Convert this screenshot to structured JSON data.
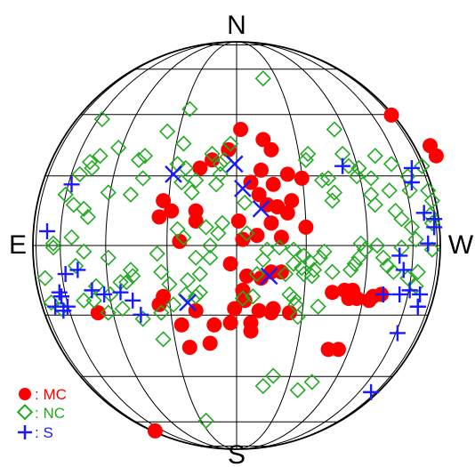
{
  "chart_data": {
    "type": "scatter",
    "projection": "stereonet",
    "title": "",
    "directions": {
      "north": "N",
      "south": "S",
      "east": "E",
      "west": "W"
    },
    "grid": true,
    "legend_position": "bottom-left",
    "colors": {
      "MC": "#ff0000",
      "NC": "#22aa22",
      "S": "#1a1aff"
    },
    "series": [
      {
        "name": "MC",
        "legend_label": ": MC",
        "marker": "filled-circle",
        "points": [
          [
            0.13,
            0.52
          ],
          [
            0.17,
            0.47
          ],
          [
            0.02,
            0.57
          ],
          [
            -0.12,
            0.42
          ],
          [
            -0.04,
            0.47
          ],
          [
            0.12,
            0.37
          ],
          [
            -0.18,
            0.38
          ],
          [
            0.25,
            0.35
          ],
          [
            0.32,
            0.33
          ],
          [
            0.18,
            0.3
          ],
          [
            -0.36,
            0.22
          ],
          [
            -0.38,
            0.14
          ],
          [
            -0.32,
            0.17
          ],
          [
            -0.2,
            0.17
          ],
          [
            -0.2,
            0.12
          ],
          [
            0.07,
            0.31
          ],
          [
            0.11,
            0.25
          ],
          [
            0.15,
            0.2
          ],
          [
            0.2,
            0.19
          ],
          [
            0.27,
            0.22
          ],
          [
            0.25,
            0.16
          ],
          [
            0.17,
            0.11
          ],
          [
            0.01,
            0.12
          ],
          [
            0.1,
            0.05
          ],
          [
            0.03,
            0.03
          ],
          [
            0.22,
            0.04
          ],
          [
            0.34,
            0.09
          ],
          [
            0.76,
            0.64
          ],
          [
            0.95,
            0.49
          ],
          [
            0.98,
            0.44
          ],
          [
            -0.28,
            0.02
          ],
          [
            -0.03,
            -0.09
          ],
          [
            0.05,
            -0.15
          ],
          [
            0.12,
            -0.16
          ],
          [
            0.17,
            -0.13
          ],
          [
            0.22,
            -0.13
          ],
          [
            0.03,
            -0.22
          ],
          [
            0.04,
            -0.27
          ],
          [
            0.11,
            -0.32
          ],
          [
            0.18,
            -0.31
          ],
          [
            0.07,
            -0.38
          ],
          [
            -0.01,
            -0.31
          ],
          [
            -0.36,
            -0.25
          ],
          [
            -0.2,
            -0.32
          ],
          [
            -0.27,
            -0.39
          ],
          [
            -0.03,
            -0.38
          ],
          [
            -0.11,
            -0.39
          ],
          [
            -0.13,
            -0.48
          ],
          [
            -0.23,
            -0.5
          ],
          [
            0.07,
            -0.42
          ],
          [
            0.17,
            -0.33
          ],
          [
            0.26,
            -0.33
          ],
          [
            0.47,
            -0.23
          ],
          [
            0.53,
            -0.22
          ],
          [
            0.57,
            -0.22
          ],
          [
            0.55,
            -0.26
          ],
          [
            0.59,
            -0.26
          ],
          [
            0.65,
            -0.27
          ],
          [
            0.67,
            -0.25
          ],
          [
            0.71,
            -0.24
          ],
          [
            0.5,
            -0.51
          ],
          [
            0.45,
            -0.51
          ],
          [
            -0.38,
            -0.29
          ],
          [
            -0.68,
            -0.33
          ],
          [
            -0.4,
            -0.91
          ]
        ]
      },
      {
        "name": "NC",
        "legend_label": ": NC",
        "marker": "open-diamond",
        "points": [
          [
            0.13,
            0.82
          ],
          [
            0.48,
            0.57
          ],
          [
            0.35,
            0.45
          ],
          [
            0.34,
            0.42
          ],
          [
            0.42,
            0.32
          ],
          [
            0.45,
            0.33
          ],
          [
            0.52,
            0.45
          ],
          [
            0.55,
            0.39
          ],
          [
            0.59,
            0.34
          ],
          [
            0.6,
            0.38
          ],
          [
            0.48,
            0.26
          ],
          [
            0.47,
            0.22
          ],
          [
            0.68,
            0.44
          ],
          [
            0.76,
            0.4
          ],
          [
            0.66,
            0.33
          ],
          [
            0.66,
            0.25
          ],
          [
            0.68,
            0.2
          ],
          [
            0.75,
            0.27
          ],
          [
            0.78,
            0.17
          ],
          [
            0.84,
            0.34
          ],
          [
            0.91,
            0.39
          ],
          [
            0.85,
            0.27
          ],
          [
            0.81,
            0.13
          ],
          [
            0.86,
            0.09
          ],
          [
            0.88,
            0.03
          ],
          [
            0.94,
            0.27
          ],
          [
            0.96,
            0.22
          ],
          [
            0.95,
            0.15
          ],
          [
            0.96,
            0.11
          ],
          [
            -0.23,
            0.67
          ],
          [
            -0.34,
            0.56
          ],
          [
            -0.48,
            0.42
          ],
          [
            -0.66,
            0.62
          ],
          [
            -0.58,
            0.48
          ],
          [
            -0.72,
            0.41
          ],
          [
            -0.71,
            0.38
          ],
          [
            -0.67,
            0.44
          ],
          [
            -0.77,
            0.35
          ],
          [
            -0.84,
            0.25
          ],
          [
            -0.8,
            0.2
          ],
          [
            -0.75,
            0.18
          ],
          [
            -0.73,
            0.14
          ],
          [
            -0.63,
            0.26
          ],
          [
            -0.52,
            0.25
          ],
          [
            -0.46,
            0.33
          ],
          [
            -0.45,
            0.44
          ],
          [
            -0.29,
            0.4
          ],
          [
            -0.25,
            0.38
          ],
          [
            -0.12,
            0.45
          ],
          [
            -0.08,
            0.4
          ],
          [
            -0.06,
            0.42
          ],
          [
            -0.03,
            0.5
          ],
          [
            -0.1,
            0.3
          ],
          [
            -0.08,
            0.35
          ],
          [
            -0.27,
            0.31
          ],
          [
            -0.22,
            0.26
          ],
          [
            -0.26,
            0.5
          ],
          [
            -0.2,
            0.32
          ],
          [
            -0.09,
            0.06
          ],
          [
            -0.07,
            0.11
          ],
          [
            0.04,
            0.21
          ],
          [
            -0.15,
            0.09
          ],
          [
            -0.29,
            0.08
          ],
          [
            -0.26,
            0.04
          ],
          [
            -0.13,
            0.0
          ],
          [
            -0.13,
            -0.06
          ],
          [
            -0.2,
            -0.06
          ],
          [
            -0.18,
            -0.14
          ],
          [
            -0.24,
            -0.17
          ],
          [
            -0.33,
            -0.19
          ],
          [
            -0.37,
            -0.13
          ],
          [
            -0.39,
            -0.04
          ],
          [
            -0.52,
            -0.12
          ],
          [
            -0.51,
            -0.15
          ],
          [
            -0.57,
            -0.18
          ],
          [
            -0.62,
            -0.24
          ],
          [
            -0.7,
            -0.27
          ],
          [
            -0.75,
            -0.27
          ],
          [
            -0.69,
            -0.2
          ],
          [
            -0.63,
            -0.06
          ],
          [
            -0.75,
            -0.03
          ],
          [
            -0.79,
            -0.1
          ],
          [
            -0.81,
            0.04
          ],
          [
            -0.9,
            -0.01
          ],
          [
            -0.9,
            0.01
          ],
          [
            -0.94,
            -0.16
          ],
          [
            -0.91,
            -0.28
          ],
          [
            -0.86,
            -0.31
          ],
          [
            -0.56,
            -0.31
          ],
          [
            -0.46,
            -0.36
          ],
          [
            -0.37,
            -0.33
          ],
          [
            -0.31,
            -0.29
          ],
          [
            -0.25,
            -0.24
          ],
          [
            -0.18,
            -0.23
          ],
          [
            -0.2,
            -0.25
          ],
          [
            0.03,
            -0.26
          ],
          [
            0.1,
            -0.14
          ],
          [
            0.13,
            -0.07
          ],
          [
            0.15,
            -0.02
          ],
          [
            0.21,
            -0.01
          ],
          [
            0.28,
            -0.02
          ],
          [
            0.33,
            -0.05
          ],
          [
            0.28,
            -0.09
          ],
          [
            0.32,
            -0.11
          ],
          [
            0.37,
            -0.15
          ],
          [
            0.38,
            -0.12
          ],
          [
            0.33,
            -0.14
          ],
          [
            0.41,
            -0.06
          ],
          [
            0.43,
            -0.03
          ],
          [
            0.36,
            -0.08
          ],
          [
            0.24,
            -0.14
          ],
          [
            0.26,
            -0.24
          ],
          [
            0.29,
            -0.29
          ],
          [
            0.4,
            -0.3
          ],
          [
            0.3,
            -0.35
          ],
          [
            0.47,
            -0.13
          ],
          [
            0.56,
            -0.12
          ],
          [
            0.58,
            -0.09
          ],
          [
            0.6,
            -0.06
          ],
          [
            0.63,
            -0.02
          ],
          [
            0.61,
            0.01
          ],
          [
            0.69,
            0.0
          ],
          [
            0.72,
            -0.06
          ],
          [
            0.74,
            -0.1
          ],
          [
            0.77,
            -0.13
          ],
          [
            0.84,
            -0.16
          ],
          [
            0.81,
            -0.01
          ],
          [
            0.89,
            -0.13
          ],
          [
            0.96,
            -0.02
          ],
          [
            0.88,
            -0.2
          ],
          [
            0.37,
            -0.67
          ],
          [
            0.3,
            -0.71
          ],
          [
            0.13,
            -0.69
          ],
          [
            0.18,
            -0.64
          ],
          [
            0.28,
            -0.26
          ],
          [
            -0.15,
            -0.86
          ],
          [
            -0.36,
            -0.46
          ],
          [
            0.08,
            -0.25
          ],
          [
            0.05,
            0.06
          ],
          [
            -0.54,
            -0.18
          ],
          [
            -0.63,
            -0.33
          ]
        ]
      },
      {
        "name": "S",
        "legend_label": ": S",
        "marker": "plus",
        "points": [
          [
            0.52,
            0.39
          ],
          [
            0.86,
            0.38
          ],
          [
            0.86,
            0.31
          ],
          [
            0.92,
            0.16
          ],
          [
            0.97,
            0.13
          ],
          [
            0.94,
            0.01
          ],
          [
            0.8,
            -0.05
          ],
          [
            0.82,
            -0.12
          ],
          [
            0.85,
            -0.22
          ],
          [
            0.8,
            -0.24
          ],
          [
            0.72,
            -0.24
          ],
          [
            0.9,
            -0.24
          ],
          [
            0.89,
            -0.3
          ],
          [
            0.89,
            -0.3
          ],
          [
            0.79,
            -0.43
          ],
          [
            0.66,
            -0.72
          ],
          [
            -0.81,
            0.3
          ],
          [
            -0.93,
            0.07
          ],
          [
            -0.78,
            -0.12
          ],
          [
            -0.84,
            -0.14
          ],
          [
            -0.86,
            -0.25
          ],
          [
            -0.83,
            -0.3
          ],
          [
            -0.89,
            -0.3
          ],
          [
            -0.85,
            -0.32
          ],
          [
            -0.87,
            -0.23
          ],
          [
            -0.71,
            -0.22
          ],
          [
            -0.57,
            -0.23
          ],
          [
            -0.65,
            -0.24
          ],
          [
            -0.51,
            -0.27
          ],
          [
            -0.47,
            -0.34
          ],
          [
            0.97,
            0.09
          ]
        ]
      },
      {
        "name": "",
        "marker": "x",
        "color_key": "S",
        "points": [
          [
            -0.31,
            0.35
          ],
          [
            -0.01,
            0.4
          ],
          [
            0.03,
            0.28
          ],
          [
            0.12,
            0.18
          ],
          [
            0.16,
            -0.15
          ],
          [
            -0.24,
            -0.28
          ]
        ]
      }
    ]
  }
}
